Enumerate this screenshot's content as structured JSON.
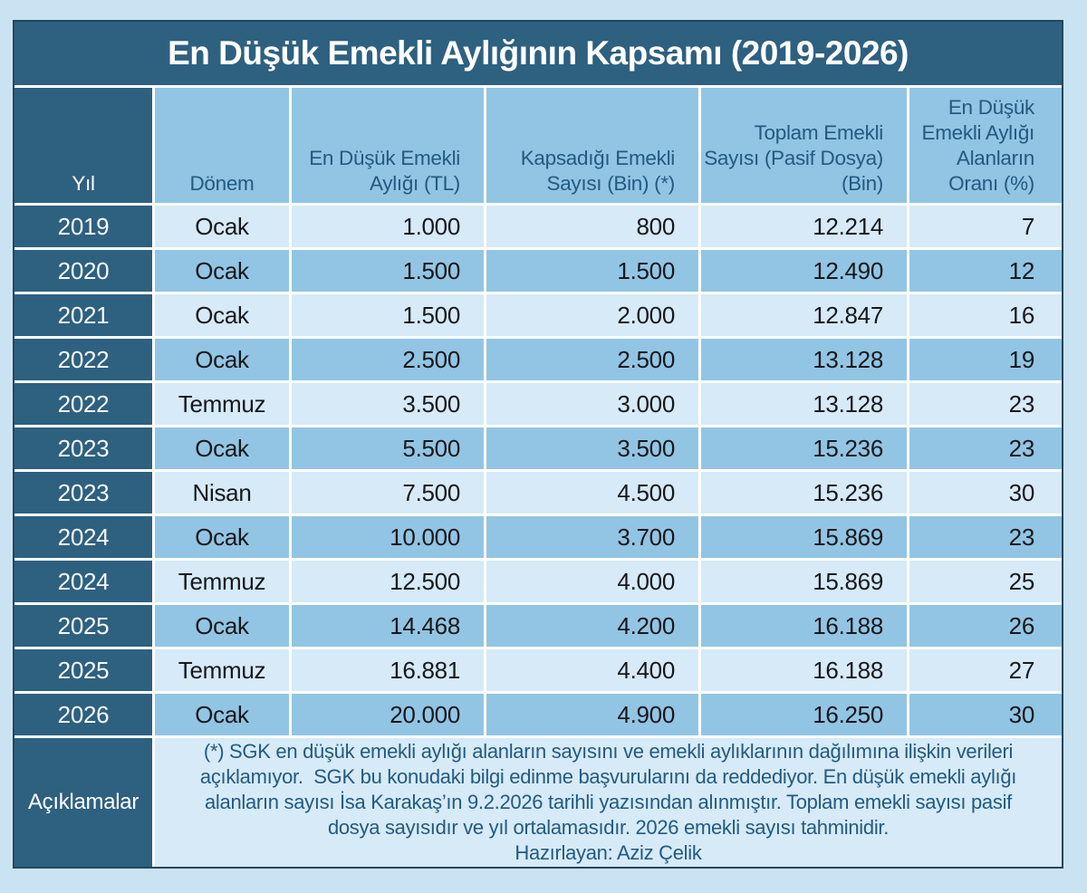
{
  "title": "En Düşük Emekli Aylığının Kapsamı (2019-2026)",
  "table": {
    "columns": [
      {
        "key": "year",
        "label_lines": [
          "Yıl"
        ],
        "align": "center",
        "header_align": "center"
      },
      {
        "key": "period",
        "label_lines": [
          "Dönem"
        ],
        "align": "center",
        "header_align": "center"
      },
      {
        "key": "min-pension-tl",
        "label_lines": [
          "En Düşük Emekli",
          "Aylığı (TL)"
        ],
        "align": "right",
        "header_align": "right"
      },
      {
        "key": "covered-count-bin",
        "label_lines": [
          "Kapsadığı Emekli",
          "Sayısı (Bin) (*)"
        ],
        "align": "right",
        "header_align": "right"
      },
      {
        "key": "total-retirees-bin",
        "label_lines": [
          "Toplam Emekli",
          "Sayısı (Pasif Dosya)",
          "(Bin)"
        ],
        "align": "right",
        "header_align": "right"
      },
      {
        "key": "ratio-pct",
        "label_lines": [
          "En Düşük",
          "Emekli Aylığı",
          "Alanların",
          "Oranı (%)"
        ],
        "align": "right",
        "header_align": "right"
      }
    ],
    "rows": [
      [
        "2019",
        "Ocak",
        "1.000",
        "800",
        "12.214",
        "7"
      ],
      [
        "2020",
        "Ocak",
        "1.500",
        "1.500",
        "12.490",
        "12"
      ],
      [
        "2021",
        "Ocak",
        "1.500",
        "2.000",
        "12.847",
        "16"
      ],
      [
        "2022",
        "Ocak",
        "2.500",
        "2.500",
        "13.128",
        "19"
      ],
      [
        "2022",
        "Temmuz",
        "3.500",
        "3.000",
        "13.128",
        "23"
      ],
      [
        "2023",
        "Ocak",
        "5.500",
        "3.500",
        "15.236",
        "23"
      ],
      [
        "2023",
        "Nisan",
        "7.500",
        "4.500",
        "15.236",
        "30"
      ],
      [
        "2024",
        "Ocak",
        "10.000",
        "3.700",
        "15.869",
        "23"
      ],
      [
        "2024",
        "Temmuz",
        "12.500",
        "4.000",
        "15.869",
        "25"
      ],
      [
        "2025",
        "Ocak",
        "14.468",
        "4.200",
        "16.188",
        "26"
      ],
      [
        "2025",
        "Temmuz",
        "16.881",
        "4.400",
        "16.188",
        "27"
      ],
      [
        "2026",
        "Ocak",
        "20.000",
        "4.900",
        "16.250",
        "30"
      ]
    ]
  },
  "footnote": {
    "row_label": "Açıklamalar",
    "lines": [
      "(*) SGK en düşük emekli aylığı alanların sayısını ve emekli aylıklarının dağılımına ilişkin verileri",
      "açıklamıyor.  SGK bu konudaki bilgi edinme başvurularını da reddediyor. En düşük emekli aylığı",
      "alanların sayısı İsa Karakaş’ın 9.2.2026 tarihli yazısından alınmıştır. Toplam emekli sayısı pasif",
      "dosya sayısıdır ve yıl ortalamasıdır. 2026 emekli sayısı tahminidir.",
      "Hazırlayan: Aziz Çelik"
    ]
  },
  "colors": {
    "page_background": "#c9e3f2",
    "dark_blue": "#2e6080",
    "header_blue": "#92c5e3",
    "row_light": "#d6eaf7",
    "row_medium": "#92c5e3",
    "navy_text": "#235a80",
    "cell_text": "#16181d",
    "grid_line": "#ffffff",
    "outer_border": "#24465f"
  },
  "chart_data": {
    "type": "table",
    "title": "En Düşük Emekli Aylığının Kapsamı (2019-2026)",
    "columns": [
      "Yıl",
      "Dönem",
      "En Düşük Emekli Aylığı (TL)",
      "Kapsadığı Emekli Sayısı (Bin) (*)",
      "Toplam Emekli Sayısı (Pasif Dosya) (Bin)",
      "En Düşük Emekli Aylığı Alanların Oranı (%)"
    ],
    "rows": [
      [
        "2019",
        "Ocak",
        1000,
        800,
        12214,
        7
      ],
      [
        "2020",
        "Ocak",
        1500,
        1500,
        12490,
        12
      ],
      [
        "2021",
        "Ocak",
        1500,
        2000,
        12847,
        16
      ],
      [
        "2022",
        "Ocak",
        2500,
        2500,
        13128,
        19
      ],
      [
        "2022",
        "Temmuz",
        3500,
        3000,
        13128,
        23
      ],
      [
        "2023",
        "Ocak",
        5500,
        3500,
        15236,
        23
      ],
      [
        "2023",
        "Nisan",
        7500,
        4500,
        15236,
        30
      ],
      [
        "2024",
        "Ocak",
        10000,
        3700,
        15869,
        23
      ],
      [
        "2024",
        "Temmuz",
        12500,
        4000,
        15869,
        25
      ],
      [
        "2025",
        "Ocak",
        14468,
        4200,
        16188,
        26
      ],
      [
        "2025",
        "Temmuz",
        16881,
        4400,
        16188,
        27
      ],
      [
        "2026",
        "Ocak",
        20000,
        4900,
        16250,
        30
      ]
    ],
    "notes": "Number columns shown with Turkish thousands separator (e.g. 12.214 = 12214). Footnote row labelled Açıklamalar; prepared by Aziz Çelik."
  }
}
